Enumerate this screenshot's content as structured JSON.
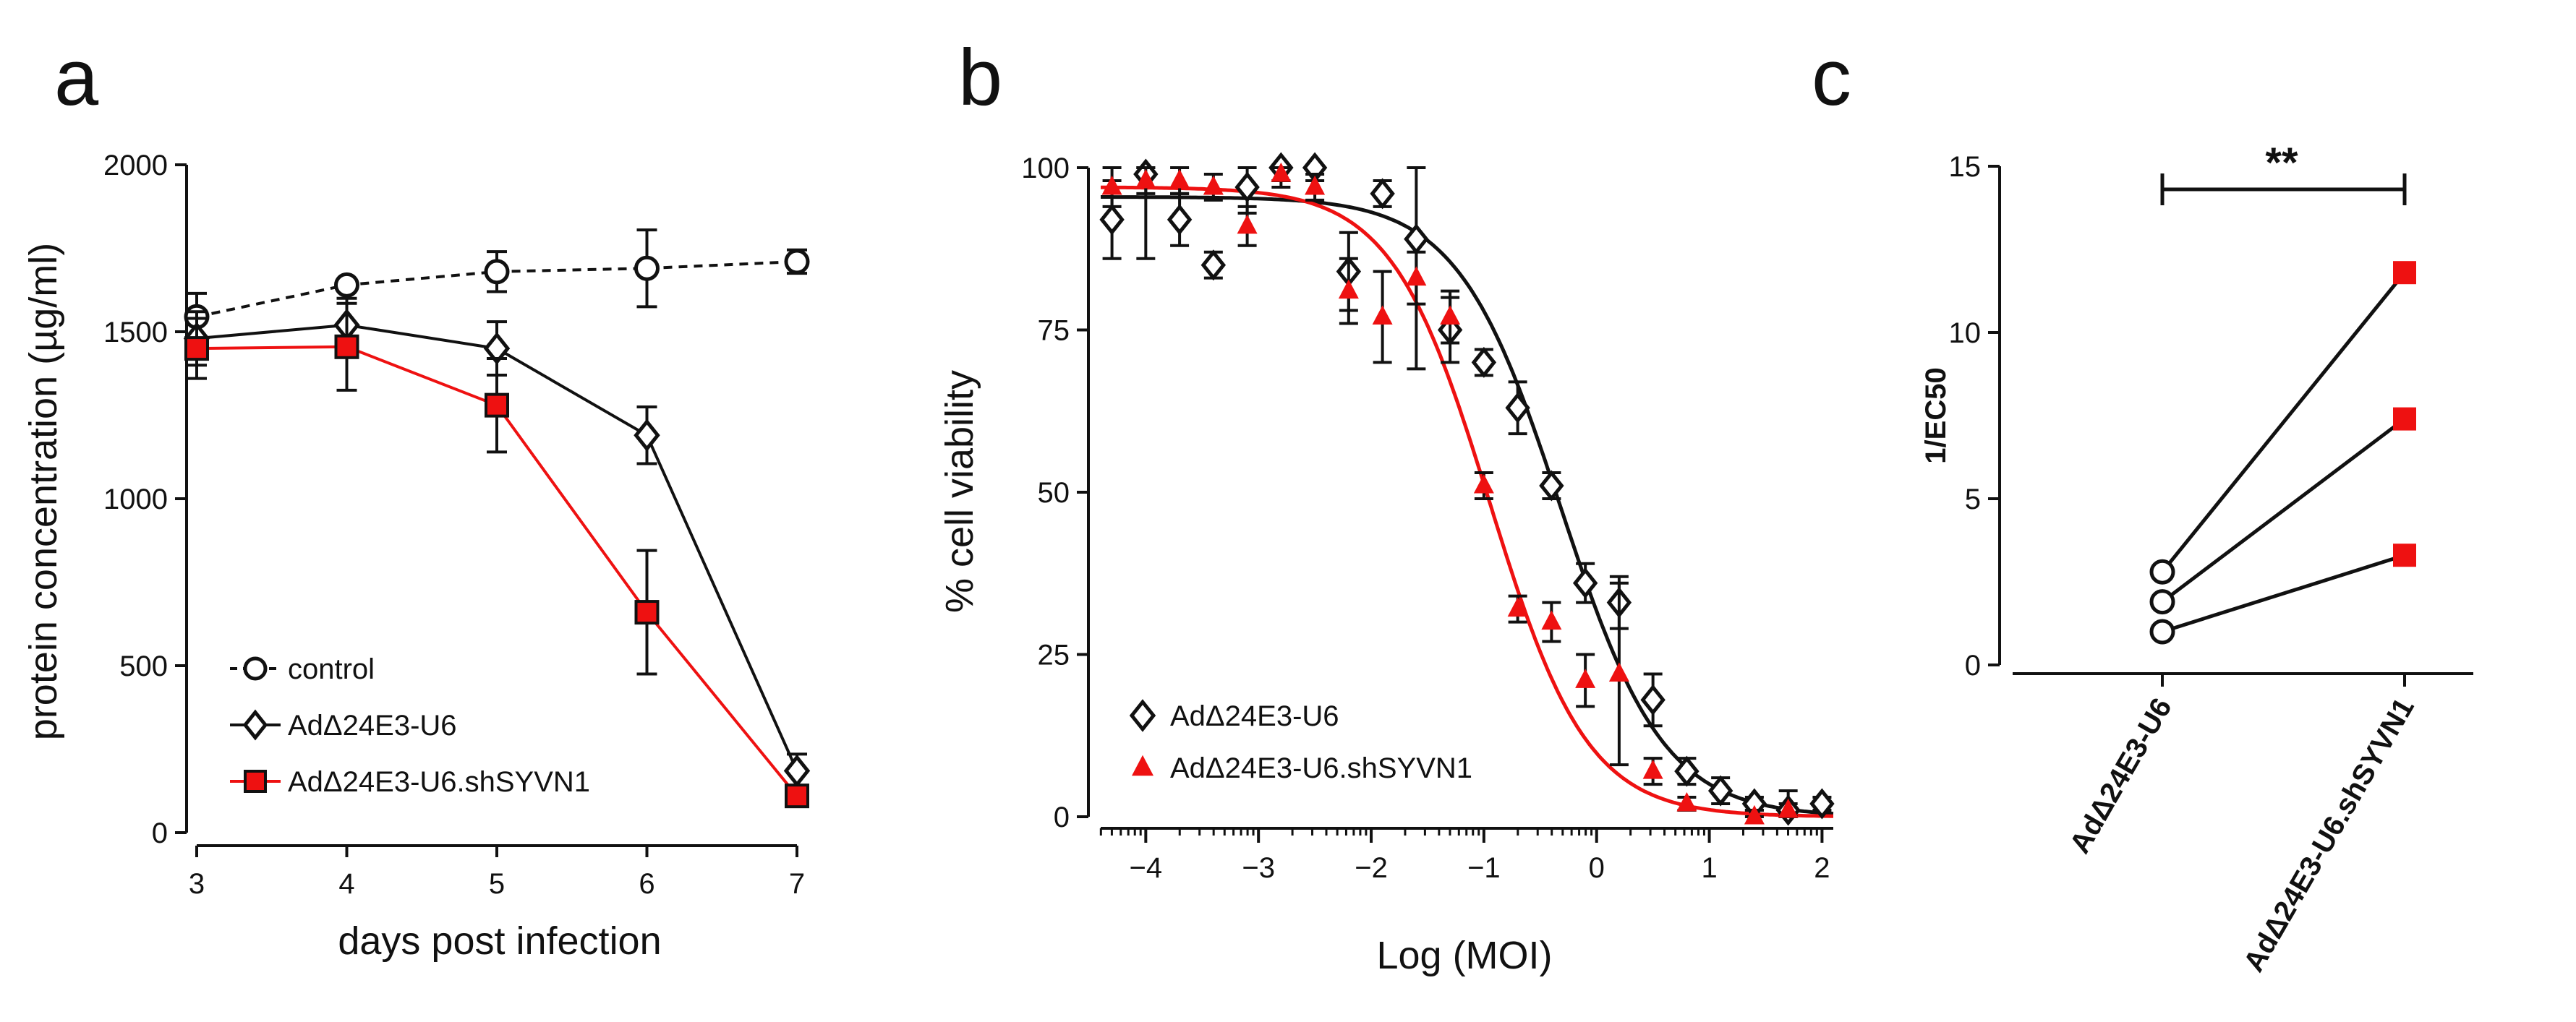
{
  "panels": {
    "a": "a",
    "b": "b",
    "c": "c"
  },
  "chart_data": [
    {
      "type": "line",
      "panel": "a",
      "xlabel": "days post infection",
      "ylabel": "protein concentration (µg/ml)",
      "xlim": [
        3,
        7
      ],
      "ylim": [
        0,
        2000
      ],
      "xticks": [
        3,
        4,
        5,
        6,
        7
      ],
      "yticks": [
        0,
        500,
        1000,
        1500,
        2000
      ],
      "series": [
        {
          "name": "control",
          "color": "#111111",
          "marker": "circle",
          "dashed": true,
          "x": [
            3,
            4,
            5,
            6,
            7
          ],
          "y": [
            1545,
            1640,
            1680,
            1690,
            1710
          ],
          "err": [
            70,
            15,
            60,
            115,
            35
          ]
        },
        {
          "name": "AdΔ24E3-U6",
          "color": "#111111",
          "marker": "diamond",
          "dashed": false,
          "x": [
            3,
            4,
            5,
            6,
            7
          ],
          "y": [
            1480,
            1520,
            1450,
            1190,
            185
          ],
          "err": [
            80,
            80,
            80,
            85,
            50
          ]
        },
        {
          "name": "AdΔ24E3-U6.shSYVN1",
          "color": "#ee1111",
          "marker": "square",
          "dashed": false,
          "x": [
            3,
            4,
            5,
            6,
            7
          ],
          "y": [
            1450,
            1455,
            1280,
            660,
            110
          ],
          "err": [
            90,
            130,
            140,
            185,
            30
          ]
        }
      ],
      "legend_position": "bottom-left"
    },
    {
      "type": "scatter",
      "panel": "b",
      "xlabel": "Log (MOI)",
      "ylabel": "% cell viability",
      "xlim": [
        -4.4,
        2.1
      ],
      "ylim": [
        0,
        100
      ],
      "xticks": [
        -4,
        -3,
        -2,
        -1,
        0,
        1,
        2
      ],
      "yticks": [
        0,
        25,
        50,
        75,
        100
      ],
      "series": [
        {
          "name": "AdΔ24E3-U6",
          "color": "#111111",
          "marker": "diamond",
          "fit": {
            "top": 95.5,
            "bottom": 0,
            "logEC50": -0.32,
            "hill": 0.95
          },
          "x": [
            -4.3,
            -4.0,
            -3.7,
            -3.4,
            -3.1,
            -2.8,
            -2.5,
            -2.2,
            -1.9,
            -1.6,
            -1.3,
            -1.0,
            -0.7,
            -0.4,
            -0.1,
            0.2,
            0.5,
            0.8,
            1.1,
            1.4,
            1.7,
            2.0
          ],
          "y": [
            92,
            99,
            92,
            85,
            97,
            100,
            100,
            84,
            96,
            89,
            75,
            70,
            63,
            51,
            36,
            33,
            18,
            7,
            4,
            2,
            1,
            2
          ],
          "err": [
            6,
            3,
            4,
            2,
            4,
            2,
            2,
            6,
            2,
            20,
            5,
            2,
            4,
            2,
            3,
            4,
            4,
            2,
            2,
            1,
            1,
            1
          ]
        },
        {
          "name": "AdΔ24E3-U6.shSYVN1",
          "color": "#ee1111",
          "marker": "triangle",
          "fit": {
            "top": 97,
            "bottom": 0,
            "logEC50": -0.95,
            "hill": 1.0
          },
          "x": [
            -4.3,
            -4.0,
            -3.7,
            -3.4,
            -3.1,
            -2.8,
            -2.5,
            -2.2,
            -1.9,
            -1.6,
            -1.3,
            -1.0,
            -0.7,
            -0.4,
            -0.1,
            0.2,
            0.5,
            0.8,
            1.4,
            1.7
          ],
          "y": [
            97,
            98,
            98,
            97,
            91,
            99,
            97,
            81,
            77,
            83,
            77,
            51,
            32,
            30,
            21,
            22,
            7,
            2,
            0,
            1
          ],
          "err": [
            3,
            12,
            2,
            2,
            3,
            2,
            2,
            5,
            7,
            4,
            4,
            2,
            2,
            3,
            4,
            14,
            2,
            1,
            1,
            3
          ]
        }
      ],
      "legend_position": "bottom-left"
    },
    {
      "type": "scatter",
      "panel": "c",
      "ylabel": "1/EC50",
      "ylim": [
        0,
        15
      ],
      "yticks": [
        0,
        5,
        10,
        15
      ],
      "categories": [
        "AdΔ24E3-U6",
        "AdΔ24E3-U6.shSYVN1"
      ],
      "pairs": [
        [
          2.8,
          11.8
        ],
        [
          1.9,
          7.4
        ],
        [
          1.0,
          3.3
        ]
      ],
      "colors": {
        "left": "#111111",
        "right": "#ee1111"
      },
      "annotation": "**"
    }
  ]
}
